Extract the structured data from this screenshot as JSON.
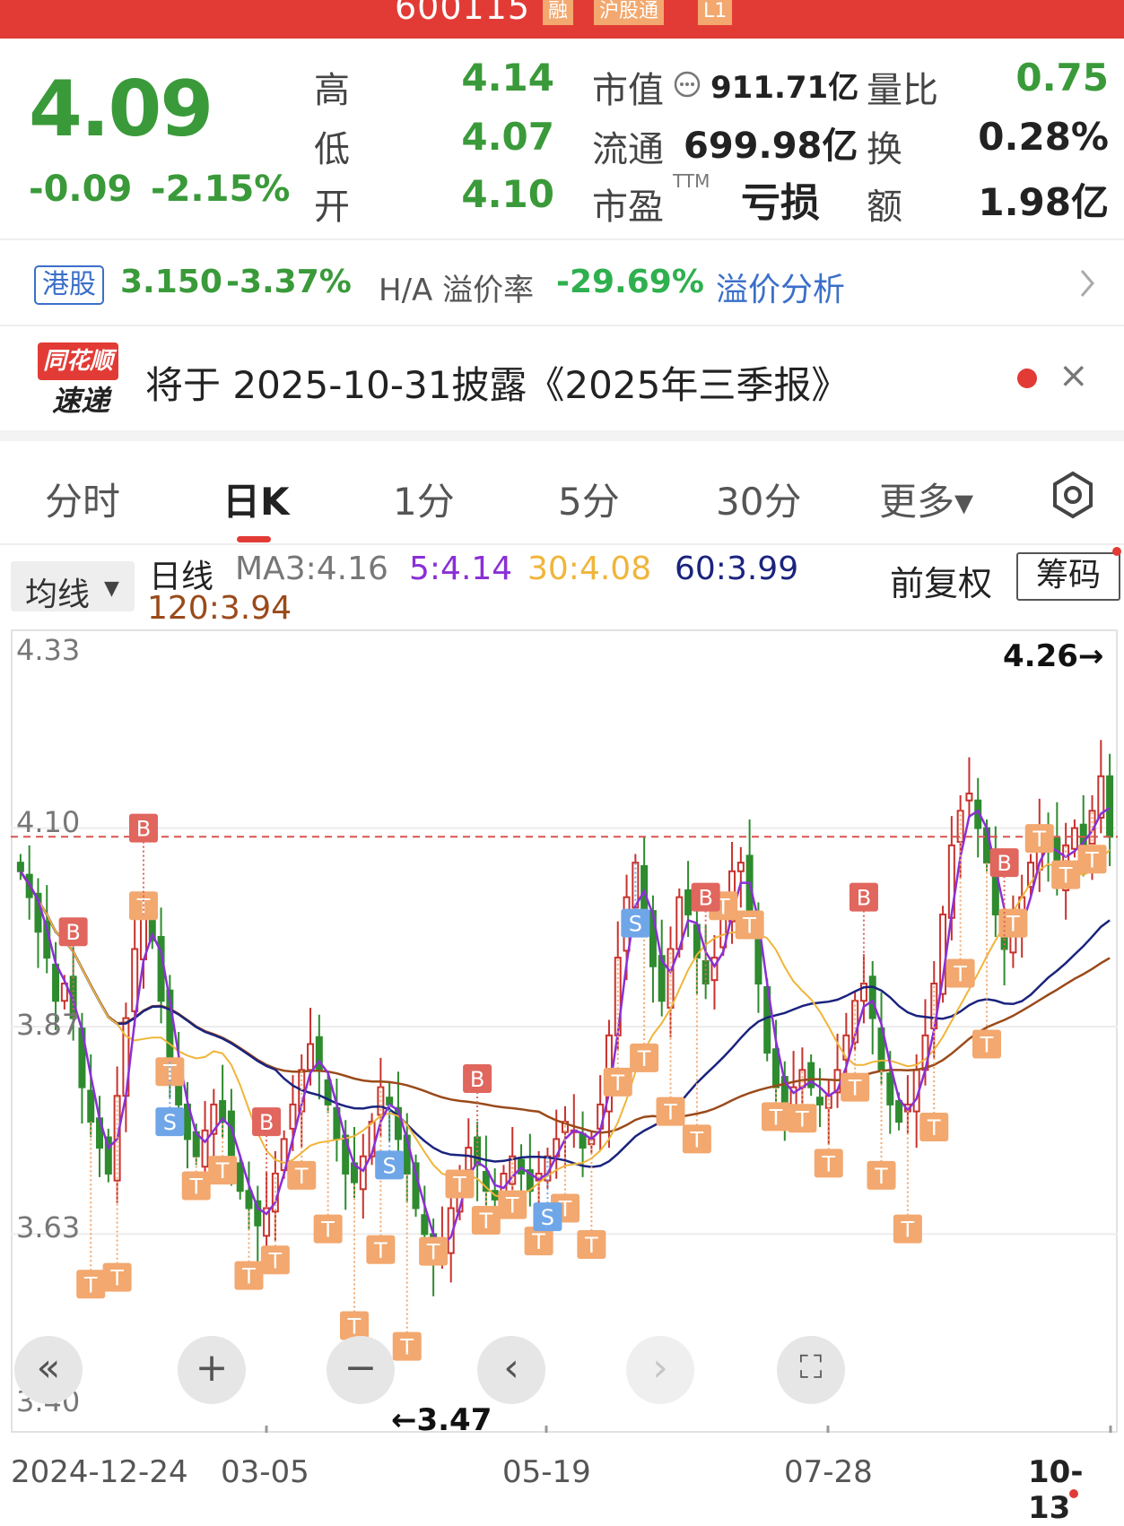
{
  "header": {
    "stock_code": "600115",
    "tags": [
      "融",
      "沪股通",
      "L1"
    ]
  },
  "quote": {
    "price": "4.09",
    "change": "-0.09",
    "change_pct": "-2.15%",
    "high_label": "高",
    "high": "4.14",
    "low_label": "低",
    "low": "4.07",
    "open_label": "开",
    "open": "4.10",
    "mcap_label": "市值",
    "mcap": "911.71亿",
    "float_label": "流通",
    "float": "699.98亿",
    "pe_label": "市盈",
    "pe_sup": "TTM",
    "pe": "亏损",
    "vol_ratio_label": "量比",
    "vol_ratio": "0.75",
    "turnover_label": "换",
    "turnover": "0.28%",
    "amount_label": "额",
    "amount": "1.98亿"
  },
  "hk": {
    "badge": "港股",
    "price": "3.150",
    "change_pct": "-3.37%",
    "premium_label": "H/A 溢价率",
    "premium": "-29.69%",
    "link": "溢价分析"
  },
  "news": {
    "logo_top": "同花顺",
    "logo_bottom": "速递",
    "text": "将于 2025-10-31披露《2025年三季报》",
    "close": "×"
  },
  "tabs": [
    "分时",
    "日K",
    "1分",
    "5分",
    "30分",
    "更多▾"
  ],
  "legend": {
    "ma_button": "均线",
    "day": "日线",
    "ma3": "MA3:4.16",
    "ma5": "5:4.14",
    "ma30": "30:4.08",
    "ma60": "60:3.99",
    "ma120": "120:3.94",
    "adjust": "前复权",
    "chip": "筹码"
  },
  "colors": {
    "up": "#c8322d",
    "down": "#2e8b2e",
    "ma3": "#8a8a8a",
    "ma5": "#8b2fd6",
    "ma30": "#f0b53a",
    "ma60": "#1a237e",
    "ma120": "#9a4a1a",
    "signal_t": "#f2a86f",
    "signal_b": "#e0665e",
    "signal_s": "#6fa6e8"
  },
  "chart_data": {
    "type": "candlestick",
    "y_ticks": [
      "4.33",
      "4.10",
      "3.87",
      "3.63",
      "3.40"
    ],
    "ylim": [
      3.4,
      4.33
    ],
    "reference_price": 4.09,
    "x_ticks": [
      "2024-12-24",
      "03-05",
      "05-19",
      "07-28",
      "10-13"
    ],
    "max_label": "4.26→",
    "min_label": "←3.47",
    "closes": [
      4.05,
      4.02,
      3.98,
      3.95,
      3.9,
      3.92,
      3.88,
      3.8,
      3.76,
      3.73,
      3.7,
      3.79,
      3.88,
      3.96,
      4.0,
      3.97,
      3.9,
      3.83,
      3.78,
      3.74,
      3.72,
      3.75,
      3.78,
      3.76,
      3.72,
      3.68,
      3.66,
      3.64,
      3.66,
      3.7,
      3.74,
      3.78,
      3.82,
      3.85,
      3.82,
      3.78,
      3.74,
      3.7,
      3.69,
      3.72,
      3.76,
      3.8,
      3.78,
      3.74,
      3.7,
      3.66,
      3.63,
      3.6,
      3.62,
      3.66,
      3.7,
      3.73,
      3.71,
      3.68,
      3.67,
      3.7,
      3.72,
      3.7,
      3.68,
      3.7,
      3.72,
      3.74,
      3.76,
      3.75,
      3.73,
      3.74,
      3.78,
      3.86,
      3.95,
      4.02,
      4.06,
      4.0,
      3.94,
      3.9,
      3.96,
      4.02,
      4.0,
      3.95,
      3.92,
      3.95,
      4.0,
      4.05,
      4.06,
      4.0,
      3.92,
      3.84,
      3.8,
      3.78,
      3.8,
      3.82,
      3.8,
      3.78,
      3.79,
      3.82,
      3.86,
      3.9,
      3.92,
      3.88,
      3.82,
      3.78,
      3.76,
      3.78,
      3.82,
      3.86,
      3.92,
      4.0,
      4.08,
      4.12,
      4.14,
      4.1,
      4.06,
      4.0,
      3.96,
      3.98,
      4.02,
      4.06,
      4.1,
      4.08,
      4.04,
      4.08,
      4.1,
      4.07,
      4.12,
      4.16,
      4.09
    ]
  },
  "controls": {
    "first": "«",
    "zoom_in": "+",
    "zoom_out": "−",
    "prev": "‹",
    "next": "›",
    "fullscreen": "⛶"
  }
}
